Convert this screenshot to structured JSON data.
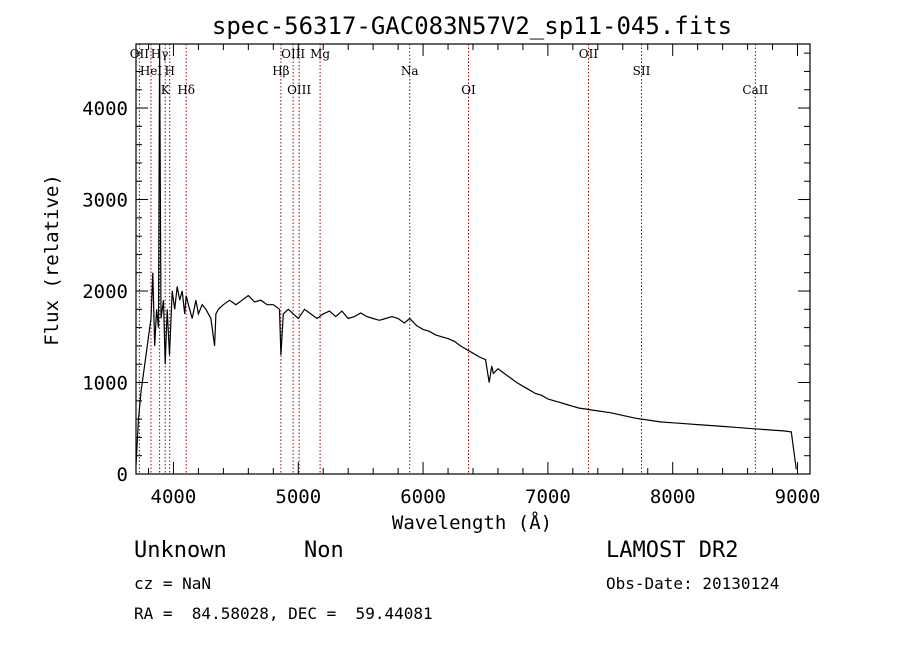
{
  "chart_data": {
    "type": "line",
    "title": "spec-56317-GAC083N57V2_sp11-045.fits",
    "xlabel": "Wavelength (Å)",
    "ylabel": "Flux (relative)",
    "xlim": [
      3700,
      9100
    ],
    "ylim": [
      0,
      4700
    ],
    "xticks": [
      4000,
      5000,
      6000,
      7000,
      8000,
      9000
    ],
    "yticks": [
      0,
      1000,
      2000,
      3000,
      4000
    ],
    "grid": false,
    "series": [
      {
        "x": [
          3700,
          3720,
          3740,
          3760,
          3780,
          3800,
          3820,
          3835,
          3850,
          3865,
          3880,
          3889,
          3900,
          3920,
          3934,
          3950,
          3968,
          3990,
          4010,
          4030,
          4050,
          4070,
          4090,
          4102,
          4120,
          4150,
          4180,
          4200,
          4230,
          4260,
          4300,
          4330,
          4340,
          4360,
          4400,
          4450,
          4500,
          4550,
          4600,
          4650,
          4700,
          4750,
          4800,
          4850,
          4861,
          4880,
          4920,
          4960,
          5000,
          5050,
          5100,
          5150,
          5200,
          5250,
          5300,
          5350,
          5400,
          5450,
          5500,
          5550,
          5600,
          5650,
          5700,
          5750,
          5800,
          5850,
          5893,
          5950,
          6000,
          6050,
          6100,
          6150,
          6200,
          6250,
          6300,
          6350,
          6400,
          6450,
          6500,
          6530,
          6550,
          6563,
          6600,
          6650,
          6700,
          6750,
          6800,
          6850,
          6900,
          6950,
          7000,
          7050,
          7100,
          7150,
          7200,
          7250,
          7300,
          7350,
          7400,
          7450,
          7500,
          7600,
          7700,
          7800,
          7900,
          8000,
          8100,
          8200,
          8300,
          8400,
          8500,
          8600,
          8700,
          8800,
          8900,
          8950,
          8990
        ],
        "values": [
          100,
          600,
          900,
          1100,
          1300,
          1500,
          1700,
          2200,
          1400,
          1800,
          1600,
          4700,
          1700,
          1900,
          1200,
          1800,
          1300,
          2000,
          1800,
          2050,
          1900,
          2000,
          1750,
          1950,
          1850,
          1700,
          1900,
          1750,
          1850,
          1800,
          1700,
          1400,
          1750,
          1800,
          1850,
          1900,
          1850,
          1900,
          1950,
          1880,
          1900,
          1850,
          1850,
          1800,
          1300,
          1750,
          1800,
          1750,
          1700,
          1800,
          1750,
          1700,
          1750,
          1780,
          1720,
          1780,
          1700,
          1720,
          1760,
          1720,
          1700,
          1680,
          1700,
          1720,
          1700,
          1650,
          1700,
          1620,
          1580,
          1560,
          1520,
          1500,
          1480,
          1450,
          1400,
          1360,
          1320,
          1280,
          1250,
          1000,
          1180,
          1100,
          1150,
          1100,
          1050,
          1000,
          960,
          920,
          880,
          860,
          820,
          800,
          780,
          760,
          740,
          720,
          710,
          700,
          690,
          680,
          670,
          640,
          610,
          590,
          570,
          560,
          550,
          540,
          530,
          520,
          510,
          500,
          490,
          480,
          470,
          460,
          50
        ]
      }
    ],
    "lines": [
      {
        "label": "Hγ",
        "x": 3889
      },
      {
        "label": "H",
        "x": 3970
      },
      {
        "label": "K",
        "x": 3934
      },
      {
        "label": "OII",
        "x": 3727
      },
      {
        "label": "HeI",
        "x": 3820
      },
      {
        "label": "Hδ",
        "x": 4102
      },
      {
        "label": "OIII",
        "x": 4959
      },
      {
        "label": "Hβ",
        "x": 4861
      },
      {
        "label": "OIII",
        "x": 5007
      },
      {
        "label": "Mg",
        "x": 5175
      },
      {
        "label": "Na",
        "x": 5893
      },
      {
        "label": "OI",
        "x": 6364
      },
      {
        "label": "OII",
        "x": 7325
      },
      {
        "label": "SII",
        "x": 7750
      },
      {
        "label": "CaII",
        "x": 8662
      }
    ]
  },
  "info": {
    "object_type": "Unknown",
    "object_sub": "Non",
    "survey": "LAMOST DR2",
    "cz": "cz = NaN",
    "obs_date": "Obs-Date: 20130124",
    "coords": "RA =  84.58028, DEC =  59.44081"
  }
}
